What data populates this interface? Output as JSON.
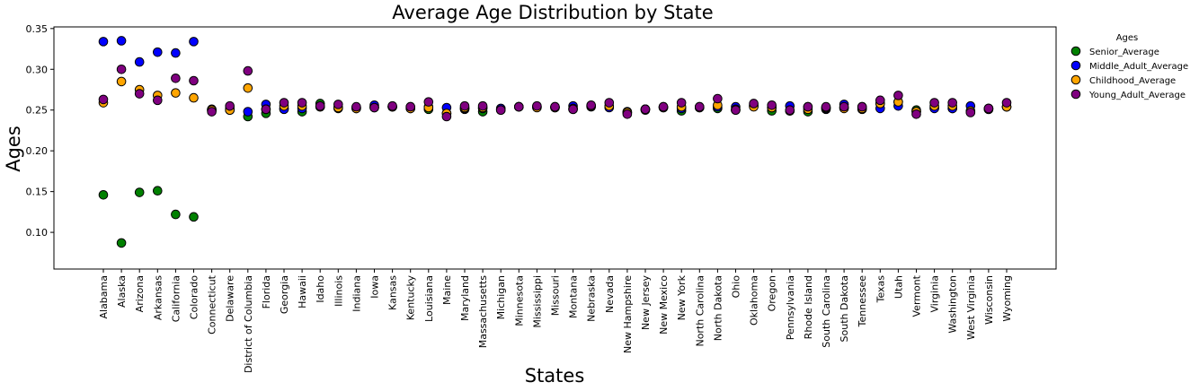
{
  "chart_data": {
    "type": "scatter",
    "title": "Average Age Distribution by State",
    "xlabel": "States",
    "ylabel": "Ages",
    "ylim": [
      0.055,
      0.352
    ],
    "yticks": [
      "0.10",
      "0.15",
      "0.20",
      "0.25",
      "0.30",
      "0.35"
    ],
    "legend_title": "Ages",
    "legend_position": "outside-top-right",
    "grid": false,
    "categories": [
      "Alabama",
      "Alaska",
      "Arizona",
      "Arkansas",
      "California",
      "Colorado",
      "Connecticut",
      "Delaware",
      "District of Columbia",
      "Florida",
      "Georgia",
      "Hawaii",
      "Idaho",
      "Illinois",
      "Indiana",
      "Iowa",
      "Kansas",
      "Kentucky",
      "Louisiana",
      "Maine",
      "Maryland",
      "Massachusetts",
      "Michigan",
      "Minnesota",
      "Mississippi",
      "Missouri",
      "Montana",
      "Nebraska",
      "Nevada",
      "New Hampshire",
      "New Jersey",
      "New Mexico",
      "New York",
      "North Carolina",
      "North Dakota",
      "Ohio",
      "Oklahoma",
      "Oregon",
      "Pennsylvania",
      "Rhode Island",
      "South Carolina",
      "South Dakota",
      "Tennessee",
      "Texas",
      "Utah",
      "Vermont",
      "Virginia",
      "Washington",
      "West Virginia",
      "Wisconsin",
      "Wyoming"
    ],
    "series": [
      {
        "name": "Senior_Average",
        "color": "#008000",
        "values": [
          0.146,
          0.087,
          0.149,
          0.151,
          0.122,
          0.119,
          0.251,
          0.25,
          0.242,
          0.246,
          0.252,
          0.248,
          0.258,
          0.252,
          0.252,
          0.254,
          0.254,
          0.252,
          0.251,
          0.246,
          0.251,
          0.248,
          0.251,
          0.254,
          0.254,
          0.253,
          0.251,
          0.254,
          0.254,
          0.247,
          0.251,
          0.254,
          0.249,
          0.253,
          0.252,
          0.25,
          0.255,
          0.249,
          0.249,
          0.248,
          0.251,
          0.253,
          0.251,
          0.258,
          0.26,
          0.25,
          0.253,
          0.252,
          0.248,
          0.252,
          0.254
        ]
      },
      {
        "name": "Middle_Adult_Average",
        "color": "#0000ff",
        "values": [
          0.334,
          0.335,
          0.309,
          0.321,
          0.32,
          0.334,
          0.25,
          0.252,
          0.248,
          0.257,
          0.251,
          0.252,
          0.254,
          0.253,
          0.253,
          0.256,
          0.254,
          0.254,
          0.254,
          0.253,
          0.252,
          0.252,
          0.252,
          0.254,
          0.254,
          0.254,
          0.255,
          0.255,
          0.253,
          0.248,
          0.251,
          0.253,
          0.252,
          0.254,
          0.254,
          0.254,
          0.256,
          0.253,
          0.255,
          0.254,
          0.252,
          0.257,
          0.254,
          0.252,
          0.255,
          0.248,
          0.252,
          0.252,
          0.255,
          0.251,
          0.254
        ]
      },
      {
        "name": "Childhood_Average",
        "color": "#ffa500",
        "values": [
          0.259,
          0.285,
          0.275,
          0.268,
          0.271,
          0.265,
          0.25,
          0.25,
          0.277,
          0.251,
          0.255,
          0.255,
          0.254,
          0.253,
          0.252,
          0.253,
          0.254,
          0.252,
          0.253,
          0.246,
          0.253,
          0.253,
          0.25,
          0.254,
          0.253,
          0.253,
          0.252,
          0.255,
          0.255,
          0.247,
          0.25,
          0.253,
          0.254,
          0.253,
          0.256,
          0.251,
          0.254,
          0.253,
          0.249,
          0.251,
          0.253,
          0.252,
          0.252,
          0.258,
          0.26,
          0.248,
          0.255,
          0.255,
          0.249,
          0.251,
          0.254
        ]
      },
      {
        "name": "Young_Adult_Average",
        "color": "#800080",
        "values": [
          0.263,
          0.3,
          0.27,
          0.262,
          0.289,
          0.286,
          0.248,
          0.255,
          0.298,
          0.251,
          0.259,
          0.259,
          0.255,
          0.257,
          0.254,
          0.253,
          0.255,
          0.254,
          0.26,
          0.242,
          0.255,
          0.255,
          0.25,
          0.254,
          0.255,
          0.254,
          0.251,
          0.256,
          0.259,
          0.245,
          0.251,
          0.254,
          0.259,
          0.254,
          0.264,
          0.25,
          0.258,
          0.256,
          0.25,
          0.254,
          0.254,
          0.254,
          0.254,
          0.262,
          0.268,
          0.245,
          0.259,
          0.259,
          0.247,
          0.252,
          0.259
        ]
      }
    ]
  }
}
